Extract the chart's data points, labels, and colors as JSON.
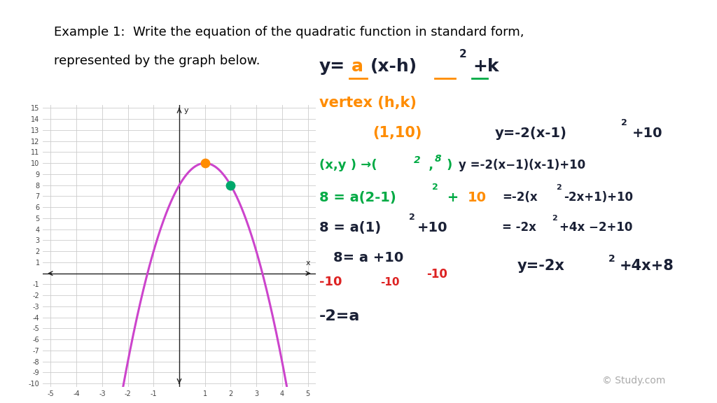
{
  "bg_color": "#ffffff",
  "graph_xlim": [
    -5.3,
    5.3
  ],
  "graph_ylim": [
    -10.3,
    15.3
  ],
  "parabola_color": "#cc44cc",
  "vertex_color": "#ff8c00",
  "other_point_color": "#00a86b",
  "grid_color": "#cccccc",
  "dk": "#1a2035",
  "gr": "#00aa44",
  "org": "#ff8c00",
  "rd": "#dd2222",
  "pu": "#8844bb",
  "title_line1": "Example 1:  Write the equation of the quadratic function in standard form,",
  "title_line2": "represented by the graph below."
}
